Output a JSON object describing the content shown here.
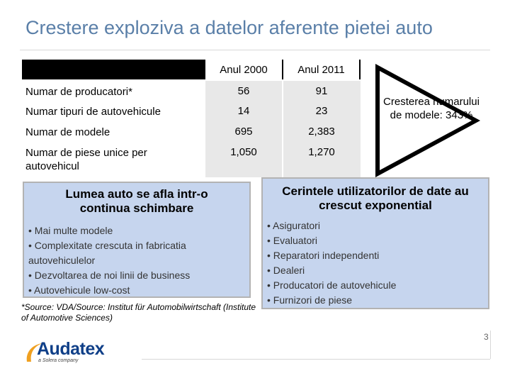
{
  "title": "Crestere exploziva a datelor aferente pietei auto",
  "table": {
    "headers": [
      "Anul 2000",
      "Anul 2011"
    ],
    "rows": [
      {
        "label": "Numar de producatori*",
        "v2000": "56",
        "v2011": "91"
      },
      {
        "label": "Numar tipuri de autovehicule",
        "v2000": "14",
        "v2011": "23"
      },
      {
        "label": "Numar de modele",
        "v2000": "695",
        "v2011": "2,383"
      },
      {
        "label": "Numar de piese unice per autovehicul",
        "v2000": "1,050",
        "v2011": "1,270"
      }
    ]
  },
  "arrow_callout": "Cresterea numarului de modele: 343%",
  "left_box": {
    "heading": "Lumea auto se afla intr-o continua schimbare",
    "bullets": [
      "• Mai multe modele",
      "• Complexitate crescuta in fabricatia autovehiculelor",
      "• Dezvoltarea de noi linii de business",
      "• Autovehicule low-cost"
    ]
  },
  "right_box": {
    "heading": "Cerintele utilizatorilor de date au crescut exponential",
    "bullets": [
      "• Asiguratori",
      "• Evaluatori",
      "• Reparatori independenti",
      "• Dealeri",
      "• Producatori de autovehicule",
      "• Furnizori de piese"
    ]
  },
  "source": "*Source: VDA/Source: Institut für Automobilwirtschaft (Institute of Automotive Sciences)",
  "logo": {
    "name": "Audatex",
    "tagline": "a Solera company"
  },
  "page_number": "3",
  "colors": {
    "title": "#5a7fa8",
    "box_fill": "#c6d5ee",
    "logo": "#0f3f88"
  }
}
